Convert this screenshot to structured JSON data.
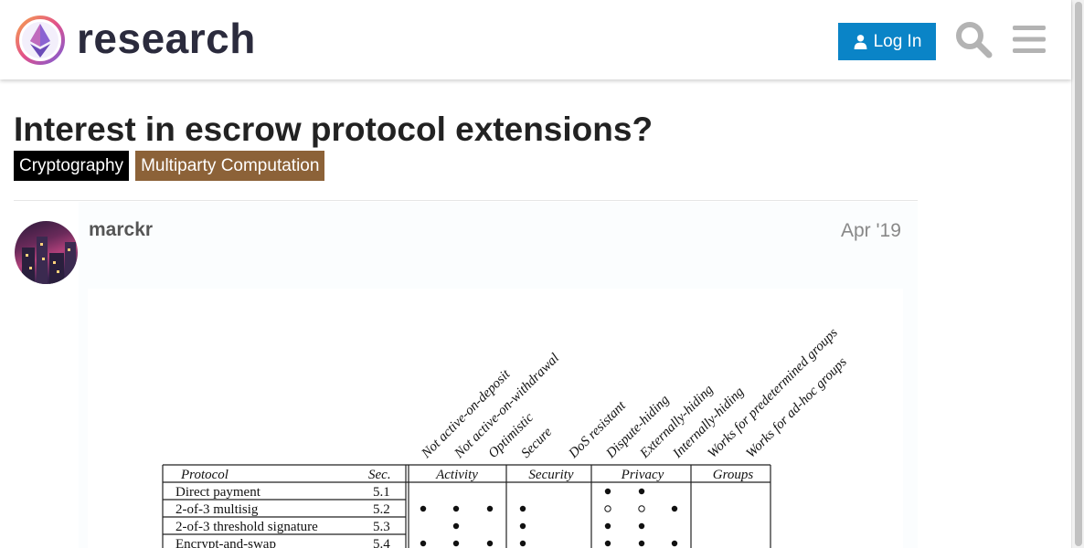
{
  "header": {
    "logo_text": "research",
    "login_label": "Log In"
  },
  "topic": {
    "title": "Interest in escrow protocol extensions?",
    "tags": [
      {
        "label": "Cryptography",
        "color": "#000000"
      },
      {
        "label": "Multiparty Computation",
        "color": "#8c6238"
      }
    ]
  },
  "post": {
    "username": "marckr",
    "date": "Apr '19"
  },
  "figure_table": {
    "rotated_headers": [
      "Not active-on-deposit",
      "Not active-on-withdrawal",
      "Optimistic",
      "Secure",
      "DoS resistant",
      "Dispute-hiding",
      "Externally-hiding",
      "Internally-hiding",
      "Works for predetermined groups",
      "Works for ad-hoc groups"
    ],
    "columns": {
      "protocol": "Protocol",
      "sec": "Sec.",
      "groups": [
        "Activity",
        "Security",
        "Privacy",
        "Groups"
      ]
    },
    "rows": [
      {
        "protocol": "Direct payment",
        "sec": "5.1",
        "marks": [
          "",
          "",
          "",
          "",
          "",
          "●",
          "●",
          "",
          "",
          ""
        ]
      },
      {
        "protocol": "2-of-3 multisig",
        "sec": "5.2",
        "marks": [
          "●",
          "●",
          "●",
          "●",
          "",
          "○",
          "○",
          "●",
          "",
          ""
        ]
      },
      {
        "protocol": "2-of-3 threshold signature",
        "sec": "5.3",
        "marks": [
          "",
          "●",
          "",
          "●",
          "",
          "●",
          "●",
          "",
          "",
          ""
        ]
      },
      {
        "protocol": "Encrypt-and-swap",
        "sec": "5.4",
        "marks": [
          "●",
          "●",
          "●",
          "●",
          "",
          "●",
          "●",
          "●",
          "",
          ""
        ]
      }
    ]
  }
}
